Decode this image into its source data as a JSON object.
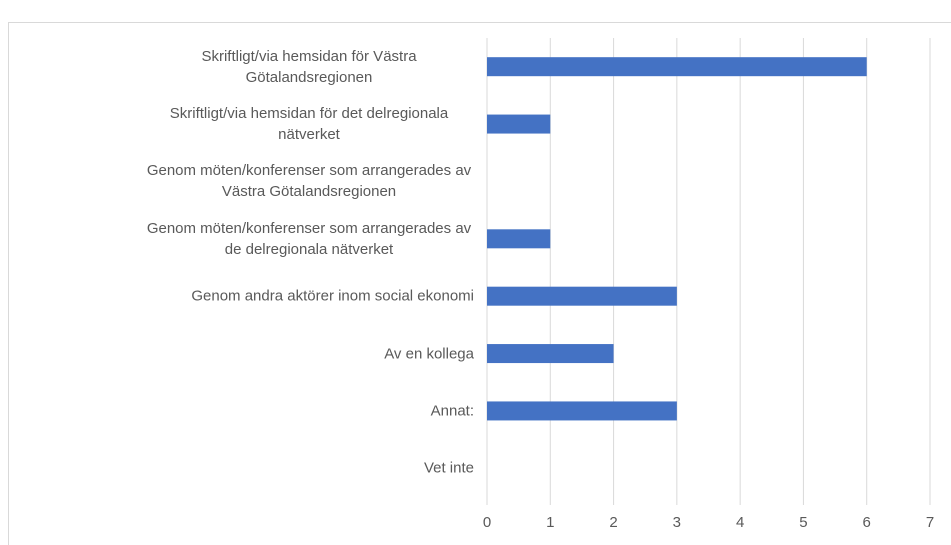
{
  "chart_data": {
    "type": "hbar",
    "categories": [
      "Skriftligt/via hemsidan för Västra Götalandsregionen",
      "Skriftligt/via hemsidan för det delregionala nätverket",
      "Genom möten/konferenser som arrangerades av Västra Götalandsregionen",
      "Genom möten/konferenser som arrangerades av de delregionala nätverket",
      "Genom andra aktörer inom social ekonomi",
      "Av en kollega",
      "Annat:",
      "Vet inte"
    ],
    "values": [
      6,
      1,
      0,
      1,
      3,
      2,
      3,
      0
    ],
    "color": "#4472c4",
    "xlim": [
      0,
      7
    ],
    "xticks": [
      0,
      1,
      2,
      3,
      4,
      5,
      6,
      7
    ],
    "grid": true
  }
}
